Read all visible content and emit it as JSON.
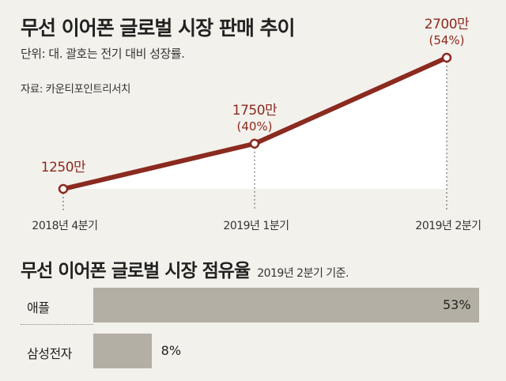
{
  "line_section": {
    "title": "무선 이어폰 글로벌 시장 판매 추이",
    "unit_note": "단위: 대. 괄호는 전기 대비 성장률.",
    "source": "자료: 카운티포인트리서치"
  },
  "share_section": {
    "title": "무선 이어폰 글로벌 시장 점유율",
    "subtitle": "2019년 2분기 기준."
  },
  "colors": {
    "line": "#8b2a1f",
    "value_label": "#8b2a1f",
    "bar": "#b4afa4",
    "background": "#f3f1ec"
  },
  "chart_data": [
    {
      "type": "line",
      "title": "무선 이어폰 글로벌 시장 판매 추이",
      "categories": [
        "2018년  4분기",
        "2019년  1분기",
        "2019년  2분기"
      ],
      "series": [
        {
          "values": [
            12500000,
            17500000,
            27000000
          ]
        }
      ],
      "value_labels": [
        "1250만",
        "1750만",
        "2700만"
      ],
      "growth_labels": [
        "",
        "(40%)",
        "(54%)"
      ],
      "grid": false
    },
    {
      "type": "bar",
      "title": "무선 이어폰 글로벌 시장 점유율",
      "categories": [
        "애플",
        "삼성전자"
      ],
      "values": [
        53,
        8
      ],
      "value_labels": [
        "53%",
        "8%"
      ]
    }
  ]
}
